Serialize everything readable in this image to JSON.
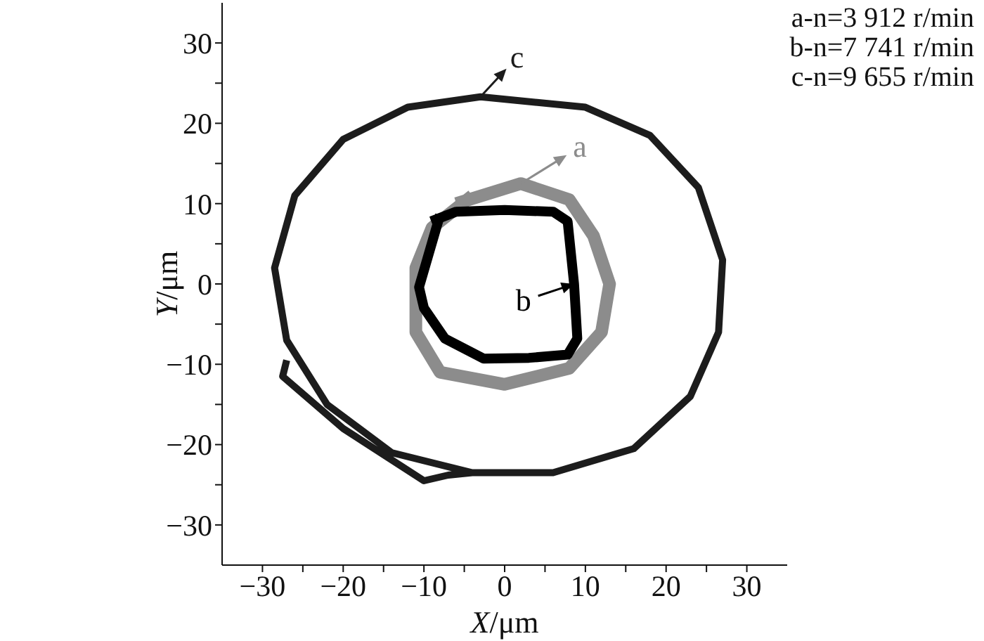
{
  "chart_data": {
    "type": "line",
    "xlabel": "X/μm",
    "ylabel": "Y/μm",
    "xlim": [
      -35,
      35
    ],
    "ylim": [
      -35,
      35
    ],
    "xticks": [
      {
        "value": -30,
        "label": "−30"
      },
      {
        "value": -25,
        "label": null
      },
      {
        "value": -20,
        "label": "−20"
      },
      {
        "value": -15,
        "label": null
      },
      {
        "value": -10,
        "label": "−10"
      },
      {
        "value": -5,
        "label": null
      },
      0,
      {
        "value": 5,
        "label": null
      },
      10,
      {
        "value": 15,
        "label": null
      },
      20,
      {
        "value": 25,
        "label": null
      },
      30
    ],
    "yticks": [
      {
        "value": -30,
        "label": "−30"
      },
      {
        "value": -25,
        "label": null
      },
      {
        "value": -20,
        "label": "−20"
      },
      {
        "value": -15,
        "label": null
      },
      {
        "value": -10,
        "label": "−10"
      },
      {
        "value": -5,
        "label": null
      },
      0,
      {
        "value": 5,
        "label": null
      },
      10,
      {
        "value": 15,
        "label": null
      },
      20,
      {
        "value": 25,
        "label": null
      },
      30
    ],
    "marker": "none",
    "grid": false,
    "legend": "top",
    "series": [
      {
        "name": "a",
        "color": "#8c8c8c",
        "x": [
          -6,
          2,
          8,
          11,
          13,
          12,
          8,
          0,
          -8,
          -11,
          -11,
          -9,
          -4
        ],
        "values": [
          10,
          12.5,
          10.5,
          6,
          0,
          -6,
          -10.5,
          -12.5,
          -11,
          -6,
          2,
          7,
          11
        ]
      },
      {
        "name": "b",
        "color": "#000000",
        "x": [
          -9.1,
          -6,
          0,
          6,
          7.8,
          8.6,
          9,
          7.8,
          3,
          -2.6,
          -7.4,
          -10,
          -10.6,
          -8
        ],
        "values": [
          7.8,
          9,
          9.2,
          9,
          7.8,
          0,
          -6.8,
          -8.8,
          -9.2,
          -9.3,
          -6.8,
          -3,
          -0.4,
          8.6
        ]
      },
      {
        "name": "c",
        "color": "#1c1c1c",
        "x": [
          -27,
          -27.5,
          -20,
          -10,
          -7,
          -4,
          6,
          16,
          23,
          26.5,
          27,
          24,
          18,
          10,
          -3,
          -12,
          -20,
          -26,
          -28.5,
          -27,
          -22,
          -14,
          -4
        ],
        "values": [
          -9.5,
          -11.5,
          -18,
          -24.5,
          -23.8,
          -23.5,
          -23.5,
          -20.5,
          -14,
          -6,
          3,
          12,
          18.5,
          22,
          23.3,
          22,
          18,
          11,
          2,
          -7,
          -15,
          -21,
          -23.5
        ]
      }
    ],
    "annotations": [
      "a-n=3 912 r/min",
      "b-n=7 741 r/min",
      "c-n=9 655 r/min"
    ]
  }
}
